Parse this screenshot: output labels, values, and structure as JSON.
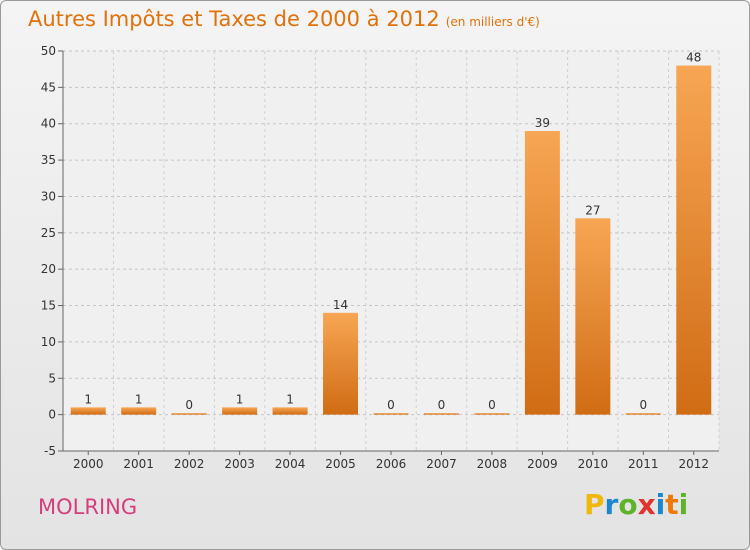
{
  "chart_data": {
    "type": "bar",
    "title": "Autres Impôts et Taxes de 2000 à 2012",
    "subtitle": "(en milliers d'€)",
    "categories": [
      "2000",
      "2001",
      "2002",
      "2003",
      "2004",
      "2005",
      "2006",
      "2007",
      "2008",
      "2009",
      "2010",
      "2011",
      "2012"
    ],
    "values": [
      1,
      1,
      0,
      1,
      1,
      14,
      0,
      0,
      0,
      39,
      27,
      0,
      48
    ],
    "value_labels": [
      "1",
      "1",
      "0",
      "1",
      "1",
      "14",
      "0",
      "0",
      "0",
      "39",
      "27",
      "0",
      "48"
    ],
    "xlabel": "",
    "ylabel": "",
    "ylim": [
      -5,
      50
    ],
    "yticks": [
      -5,
      0,
      5,
      10,
      15,
      20,
      25,
      30,
      35,
      40,
      45,
      50
    ],
    "grid": true,
    "legend": "none",
    "bar_color": "#ef8a2e"
  },
  "footer": {
    "location": "MOLRING"
  },
  "logo": {
    "letters": [
      "P",
      "r",
      "o",
      "x",
      "i",
      "t",
      "i"
    ],
    "colors": [
      "#f1b80c",
      "#1b87cc",
      "#5fb32a",
      "#e1332e",
      "#1b87cc",
      "#ee7a0a",
      "#5fb32a"
    ]
  }
}
